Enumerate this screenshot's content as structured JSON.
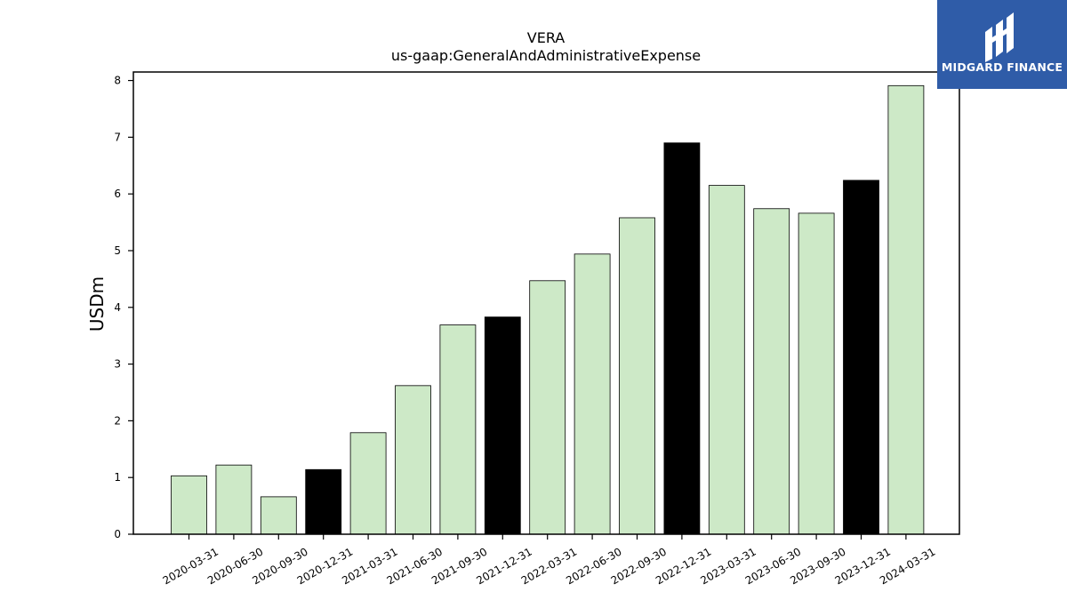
{
  "brand": {
    "name": "MIDGARD FINANCE",
    "background": "#2f5ca8"
  },
  "chart_data": {
    "type": "bar",
    "title": "VERA",
    "subtitle": "us-gaap:GeneralAndAdministrativeExpense",
    "xlabel": "",
    "ylabel": "USDm",
    "ylim": [
      0,
      8.15
    ],
    "yticks": [
      0,
      1,
      2,
      3,
      4,
      5,
      6,
      7,
      8
    ],
    "grid": false,
    "colors": {
      "quarter": "#cde9c7",
      "year_end": "#000000",
      "edge": "#000000"
    },
    "categories": [
      "2020-03-31",
      "2020-06-30",
      "2020-09-30",
      "2020-12-31",
      "2021-03-31",
      "2021-06-30",
      "2021-09-30",
      "2021-12-31",
      "2022-03-31",
      "2022-06-30",
      "2022-09-30",
      "2022-12-31",
      "2023-03-31",
      "2023-06-30",
      "2023-09-30",
      "2023-12-31",
      "2024-03-31"
    ],
    "values": [
      1.03,
      1.22,
      0.66,
      1.14,
      1.79,
      2.62,
      3.69,
      3.83,
      4.47,
      4.94,
      5.58,
      6.9,
      6.15,
      5.74,
      5.66,
      6.24,
      7.91
    ],
    "year_end_flags": [
      false,
      false,
      false,
      true,
      false,
      false,
      false,
      true,
      false,
      false,
      false,
      true,
      false,
      false,
      false,
      true,
      false
    ]
  }
}
